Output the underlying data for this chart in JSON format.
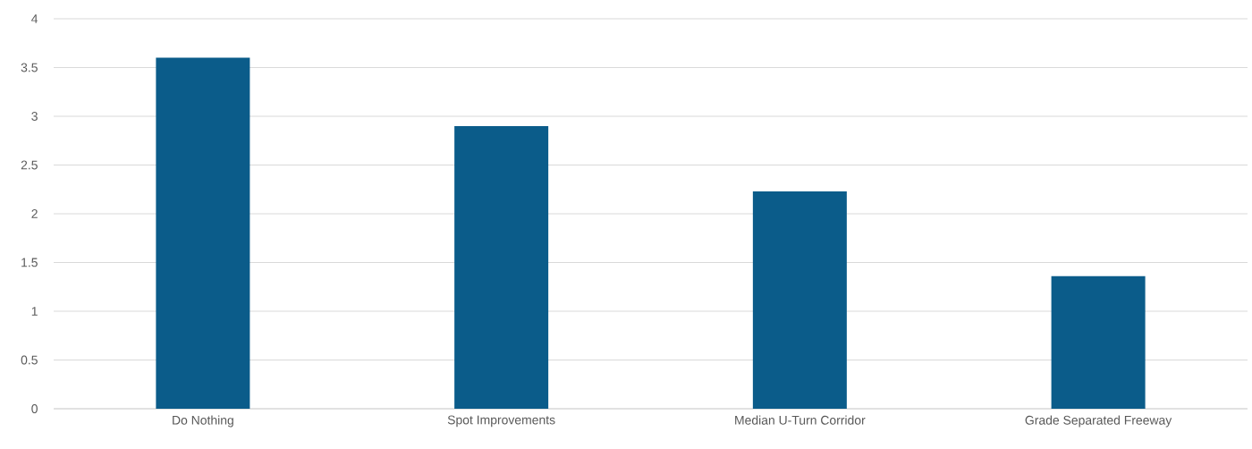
{
  "chart_data": {
    "type": "bar",
    "categories": [
      "Do Nothing",
      "Spot Improvements",
      "Median U-Turn Corridor",
      "Grade Separated Freeway"
    ],
    "values": [
      3.6,
      2.9,
      2.23,
      1.36
    ],
    "color": "#0b5c8a",
    "ylim": [
      0,
      4
    ],
    "yticks": [
      0,
      0.5,
      1,
      1.5,
      2,
      2.5,
      3,
      3.5,
      4
    ],
    "grid": "y"
  }
}
